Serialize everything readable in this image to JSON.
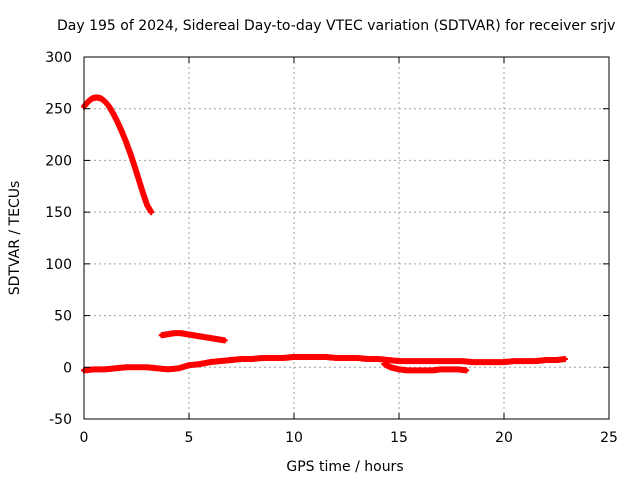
{
  "chart_data": {
    "type": "scatter",
    "title": "Day 195 of 2024, Sidereal Day-to-day VTEC variation (SDTVAR) for receiver srjv",
    "xlabel": "GPS time / hours",
    "ylabel": "SDTVAR / TECUs",
    "xlim": [
      0,
      25
    ],
    "ylim": [
      -50,
      300
    ],
    "x_ticks": [
      0,
      5,
      10,
      15,
      20,
      25
    ],
    "y_ticks": [
      -50,
      0,
      50,
      100,
      150,
      200,
      250,
      300
    ],
    "x_tick_labels": [
      "0",
      "5",
      "10",
      "15",
      "20",
      "25"
    ],
    "y_tick_labels": [
      "-50",
      "0",
      "50",
      "100",
      "150",
      "200",
      "250",
      "300"
    ],
    "grid": true,
    "marker": "+",
    "series": [
      {
        "color": "#ff0000",
        "segments": [
          {
            "x": [
              0.0,
              0.2,
              0.4,
              0.6,
              0.8,
              1.0,
              1.2,
              1.4,
              1.6,
              1.8,
              2.0,
              2.2,
              2.4,
              2.6,
              2.8,
              3.0,
              3.2
            ],
            "y": [
              252,
              257,
              260,
              261,
              260,
              257,
              252,
              245,
              237,
              228,
              218,
              207,
              195,
              182,
              169,
              157,
              150
            ]
          },
          {
            "x": [
              3.7,
              4.0,
              4.3,
              4.6,
              4.9,
              5.2,
              5.5,
              5.8,
              6.1,
              6.4,
              6.7
            ],
            "y": [
              31,
              32,
              33,
              33,
              32,
              31,
              30,
              29,
              28,
              27,
              26
            ]
          },
          {
            "x": [
              0.0,
              0.5,
              1.0,
              1.5,
              2.0,
              2.5,
              3.0,
              3.5,
              4.0,
              4.5,
              5.0,
              5.5,
              6.0,
              6.5,
              7.0,
              7.5,
              8.0,
              8.5,
              9.0,
              9.5,
              10.0,
              10.5,
              11.0,
              11.5,
              12.0,
              12.5,
              13.0,
              13.5,
              14.0,
              14.5,
              15.0,
              15.5,
              16.0,
              16.5,
              17.0,
              17.5,
              18.0,
              18.5,
              19.0,
              19.5,
              20.0,
              20.5,
              21.0,
              21.5,
              22.0,
              22.5,
              22.9
            ],
            "y": [
              -3,
              -2,
              -2,
              -1,
              0,
              0,
              0,
              -1,
              -2,
              -1,
              2,
              3,
              5,
              6,
              7,
              8,
              8,
              9,
              9,
              9,
              10,
              10,
              10,
              10,
              9,
              9,
              9,
              8,
              8,
              7,
              6,
              6,
              6,
              6,
              6,
              6,
              6,
              5,
              5,
              5,
              5,
              6,
              6,
              6,
              7,
              7,
              8
            ]
          },
          {
            "x": [
              14.3,
              14.6,
              15.0,
              15.4,
              15.8,
              16.2,
              16.6,
              17.0,
              17.4,
              17.8,
              18.2
            ],
            "y": [
              3,
              0,
              -2,
              -3,
              -3,
              -3,
              -3,
              -2,
              -2,
              -2,
              -3
            ]
          }
        ]
      }
    ]
  }
}
